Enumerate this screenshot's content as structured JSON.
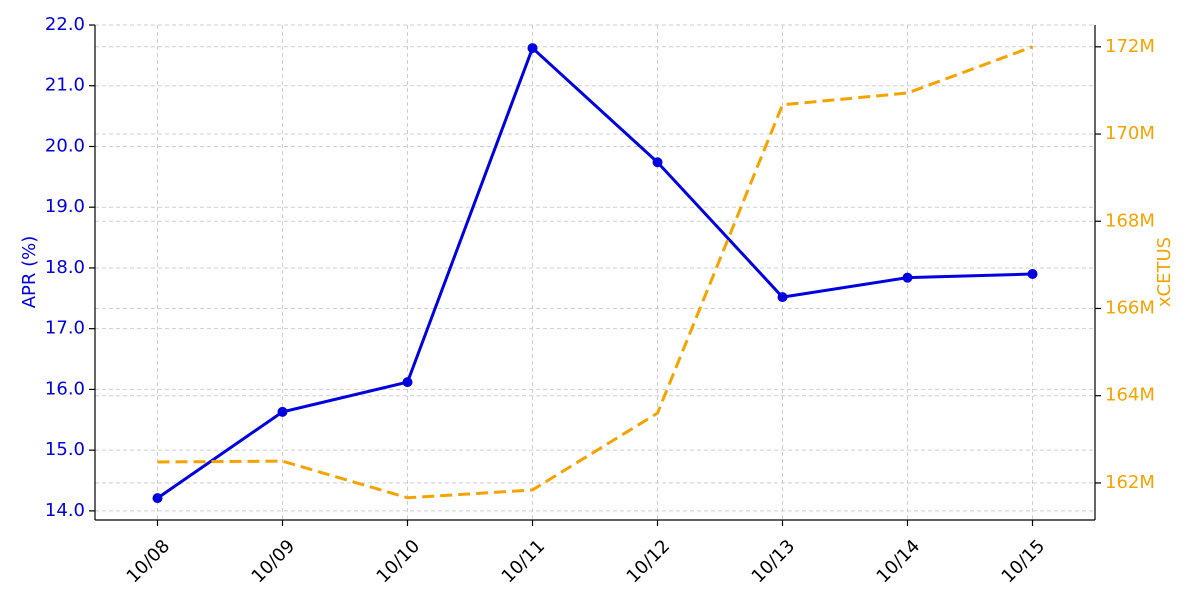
{
  "chart_data": {
    "type": "line",
    "categories": [
      "10/08",
      "10/09",
      "10/10",
      "10/11",
      "10/12",
      "10/13",
      "10/14",
      "10/15"
    ],
    "ylabel": "APR (%)",
    "y2label": "xCETUS",
    "ylim": [
      13.85,
      22.0
    ],
    "yticks": [
      {
        "value": 14,
        "label": "14.0"
      },
      {
        "value": 15,
        "label": "15.0"
      },
      {
        "value": 16,
        "label": "16.0"
      },
      {
        "value": 17,
        "label": "17.0"
      },
      {
        "value": 18,
        "label": "18.0"
      },
      {
        "value": 19,
        "label": "19.0"
      },
      {
        "value": 20,
        "label": "20.0"
      },
      {
        "value": 21,
        "label": "21.0"
      },
      {
        "value": 22,
        "label": "22.0"
      }
    ],
    "y2lim": [
      161150000,
      172500000
    ],
    "y2ticks": [
      {
        "value": 162000000,
        "label": "162M"
      },
      {
        "value": 164000000,
        "label": "164M"
      },
      {
        "value": 166000000,
        "label": "166M"
      },
      {
        "value": 168000000,
        "label": "168M"
      },
      {
        "value": 170000000,
        "label": "170M"
      },
      {
        "value": 172000000,
        "label": "172M"
      }
    ],
    "grid": true,
    "series": [
      {
        "name": "APR",
        "color": "#0000e0",
        "values": [
          14.21,
          15.63,
          16.12,
          21.62,
          19.74,
          17.52,
          17.84,
          17.9
        ]
      },
      {
        "name": "xCETUS",
        "color": "#f5a300",
        "axis": "y2",
        "dashed": true,
        "values": [
          162480000,
          162500000,
          161660000,
          161840000,
          163600000,
          170670000,
          170940000,
          172000000
        ]
      }
    ]
  }
}
